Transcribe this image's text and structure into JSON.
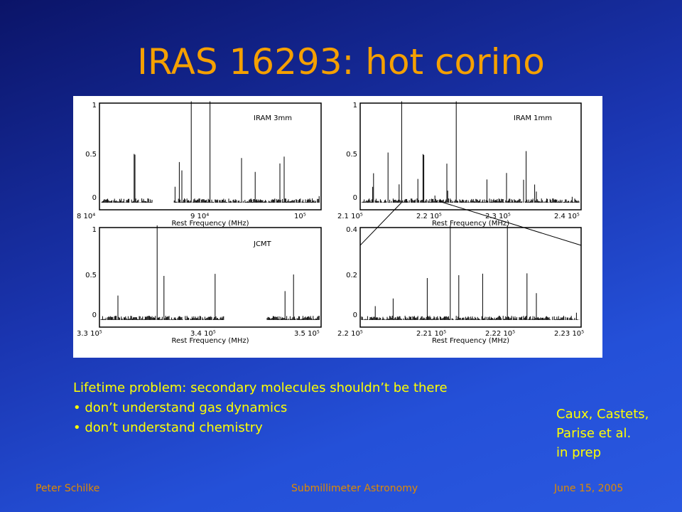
{
  "title": "IRAS 16293: hot corino",
  "panels": [
    {
      "label": "IRAM 3mm",
      "xlabel": "Rest Frequency (MHz)",
      "yticks": [
        "1",
        "0.5",
        "0"
      ],
      "xticks": [
        "8 10⁴",
        "9 10⁴",
        "10⁵"
      ]
    },
    {
      "label": "IRAM 1mm",
      "xlabel": "Rest Frequency (MHz)",
      "yticks": [
        "1",
        "0.5",
        "0"
      ],
      "xticks": [
        "2.1 10⁵",
        "2.2 10⁵",
        "2.3 10⁵",
        "2.4 10⁵"
      ]
    },
    {
      "label": "JCMT",
      "xlabel": "Rest Frequency (MHz)",
      "yticks": [
        "1",
        "0.5",
        "0"
      ],
      "xticks": [
        "3.3 10⁵",
        "3.4 10⁵",
        "3.5 10⁵"
      ]
    },
    {
      "xlabel": "Rest Frequency (MHz)",
      "yticks": [
        "0.4",
        "0.2",
        "0"
      ],
      "xticks": [
        "2.2 10⁵",
        "2.21 10⁵",
        "2.22 10⁵",
        "2.23 10⁵"
      ]
    }
  ],
  "text": {
    "heading": "Lifetime problem: secondary molecules shouldn’t be there",
    "bullets": [
      "• don’t understand gas dynamics",
      "• don’t understand chemistry"
    ]
  },
  "credit": [
    "Caux, Castets,",
    "Parise et al.",
    "in prep"
  ],
  "footer": {
    "left": "Peter Schilke",
    "center": "Submillimeter Astronomy",
    "right": "June 15, 2005"
  }
}
